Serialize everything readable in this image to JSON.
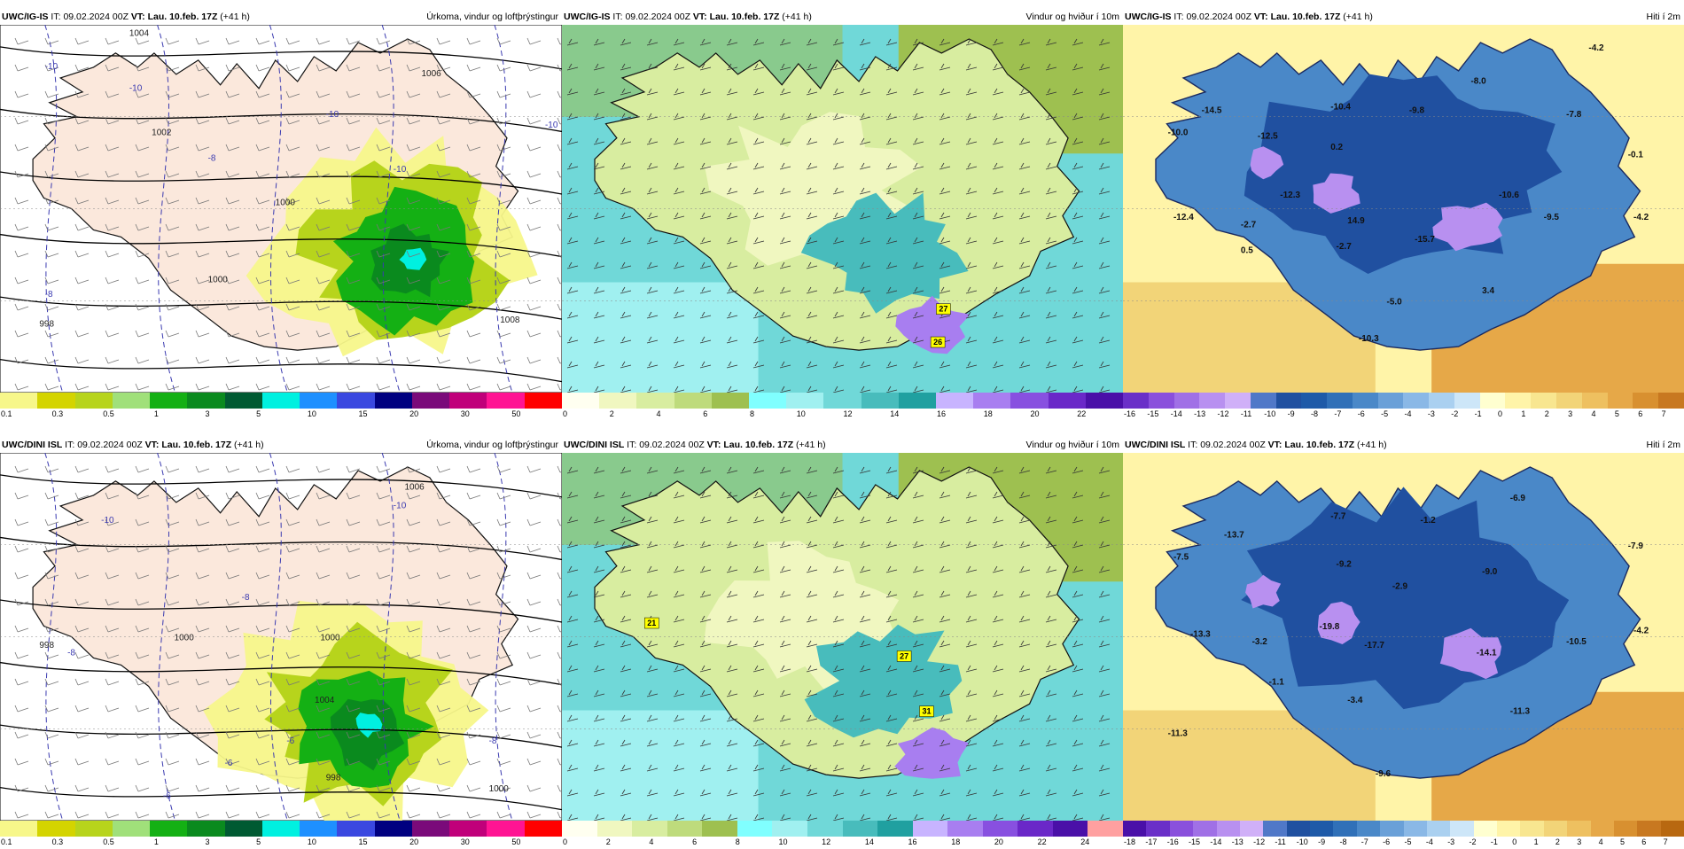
{
  "panels": [
    {
      "id": "top-precip",
      "model": "UWC/IG-IS",
      "it_label": "IT:",
      "it_value": "09.02.2024 00Z",
      "vt_label": "VT:",
      "vt_value": "Lau. 10.feb. 17Z",
      "lead": "(+41 h)",
      "title": "Úrkoma, vindur og loftþrýstingur",
      "type": "precip",
      "colorbar": {
        "colors": [
          "#f7f78a",
          "#d4d400",
          "#b7d41c",
          "#a0e07a",
          "#14b014",
          "#0a8a1e",
          "#005a32",
          "#00f0e0",
          "#1e90ff",
          "#3a48e0",
          "#000080",
          "#7a0a7a",
          "#c0007a",
          "#ff1493",
          "#ff0000"
        ],
        "labels": [
          "0.1",
          "0.3",
          "0.5",
          "1",
          "3",
          "5",
          "10",
          "15",
          "20",
          "30",
          "50"
        ]
      },
      "value_labels": [
        {
          "t": "1004"
        },
        {
          "t": "1006"
        },
        {
          "t": "1002"
        },
        {
          "t": "1000"
        },
        {
          "t": "998"
        },
        {
          "t": "1008"
        },
        {
          "t": "1000"
        },
        {
          "t": "-10"
        },
        {
          "t": "-10"
        },
        {
          "t": "-8"
        },
        {
          "t": "-10"
        },
        {
          "t": "-10"
        },
        {
          "t": "-10"
        },
        {
          "t": "-8"
        }
      ]
    },
    {
      "id": "top-wind",
      "model": "UWC/IG-IS",
      "it_label": "IT:",
      "it_value": "09.02.2024 00Z",
      "vt_label": "VT:",
      "vt_value": "Lau. 10.feb. 17Z",
      "lead": "(+41 h)",
      "title": "Vindur og hviður í 10m",
      "type": "wind",
      "colorbar": {
        "colors": [
          "#fffff0",
          "#f0f7c0",
          "#d8eda0",
          "#bedb7c",
          "#9ec050",
          "#80ffff",
          "#a0f0f0",
          "#70d8d8",
          "#48bcbc",
          "#20a0a0",
          "#c8b4ff",
          "#a87ef0",
          "#8850e0",
          "#6a28c8",
          "#4a10a8"
        ],
        "labels": [
          "0",
          "2",
          "4",
          "6",
          "8",
          "10",
          "12",
          "14",
          "16",
          "18",
          "20",
          "22"
        ]
      },
      "value_labels": [
        {
          "t": "27"
        },
        {
          "t": "26"
        }
      ]
    },
    {
      "id": "top-temp",
      "model": "UWC/IG-IS",
      "it_label": "IT:",
      "it_value": "09.02.2024 00Z",
      "vt_label": "VT:",
      "vt_value": "Lau. 10.feb. 17Z",
      "lead": "(+41 h)",
      "title": "Hiti í 2m",
      "type": "temp",
      "colorbar": {
        "colors": [
          "#6a2fc8",
          "#8a50dc",
          "#a070e6",
          "#b890f0",
          "#d0b0f8",
          "#5078c8",
          "#2050a0",
          "#1e5aa8",
          "#3070b8",
          "#4a88c8",
          "#6aa0d8",
          "#8ab8e6",
          "#aad0f0",
          "#cde6f8",
          "#ffffd0",
          "#fff4a8",
          "#f8e690",
          "#f2d478",
          "#eec060",
          "#e6a848",
          "#d89030",
          "#c87820"
        ],
        "labels": [
          "-16",
          "-15",
          "-14",
          "-13",
          "-12",
          "-11",
          "-10",
          "-9",
          "-8",
          "-7",
          "-6",
          "-5",
          "-4",
          "-3",
          "-2",
          "-1",
          "0",
          "1",
          "2",
          "3",
          "4",
          "5",
          "6",
          "7"
        ]
      },
      "value_labels": [
        {
          "t": "-14.5"
        },
        {
          "t": "-10.0"
        },
        {
          "t": "-12.5"
        },
        {
          "t": "-10.4"
        },
        {
          "t": "-9.8"
        },
        {
          "t": "-8.0"
        },
        {
          "t": "-4.2"
        },
        {
          "t": "-7.8"
        },
        {
          "t": "0.2"
        },
        {
          "t": "-12.3"
        },
        {
          "t": "-12.4"
        },
        {
          "t": "-2.7"
        },
        {
          "t": "0.5"
        },
        {
          "t": "-2.7"
        },
        {
          "t": "14.9"
        },
        {
          "t": "-10.6"
        },
        {
          "t": "-15.7"
        },
        {
          "t": "-9.5"
        },
        {
          "t": "-4.2"
        },
        {
          "t": "-0.1"
        },
        {
          "t": "-5.0"
        },
        {
          "t": "3.4"
        },
        {
          "t": "-10.3"
        }
      ]
    },
    {
      "id": "bottom-precip",
      "model": "UWC/DINI ISL",
      "it_label": "IT:",
      "it_value": "09.02.2024 00Z",
      "vt_label": "VT:",
      "vt_value": "Lau. 10.feb. 17Z",
      "lead": "(+41 h)",
      "title": "Úrkoma, vindur og loftþrýstingur",
      "type": "precip",
      "colorbar": {
        "colors": [
          "#f7f78a",
          "#d4d400",
          "#b7d41c",
          "#a0e07a",
          "#14b014",
          "#0a8a1e",
          "#005a32",
          "#00f0e0",
          "#1e90ff",
          "#3a48e0",
          "#000080",
          "#7a0a7a",
          "#c0007a",
          "#ff1493",
          "#ff0000"
        ],
        "labels": [
          "0.1",
          "0.3",
          "0.5",
          "1",
          "3",
          "5",
          "10",
          "15",
          "20",
          "30",
          "50"
        ]
      },
      "value_labels": [
        {
          "t": "1006"
        },
        {
          "t": "1000"
        },
        {
          "t": "998"
        },
        {
          "t": "1000"
        },
        {
          "t": "1000"
        },
        {
          "t": "998"
        },
        {
          "t": "1004"
        },
        {
          "t": "-10"
        },
        {
          "t": "-10"
        },
        {
          "t": "-8"
        },
        {
          "t": "-8"
        },
        {
          "t": "-6"
        },
        {
          "t": "-6"
        },
        {
          "t": "-8"
        },
        {
          "t": "-6"
        }
      ]
    },
    {
      "id": "bottom-wind",
      "model": "UWC/DINI ISL",
      "it_label": "IT:",
      "it_value": "09.02.2024 00Z",
      "vt_label": "VT:",
      "vt_value": "Lau. 10.feb. 17Z",
      "lead": "(+41 h)",
      "title": "Vindur og hviður í 10m",
      "type": "wind",
      "colorbar": {
        "colors": [
          "#fffff0",
          "#f0f7c0",
          "#d8eda0",
          "#bedb7c",
          "#9ec050",
          "#80ffff",
          "#a0f0f0",
          "#70d8d8",
          "#48bcbc",
          "#20a0a0",
          "#c8b4ff",
          "#a87ef0",
          "#8850e0",
          "#6a28c8",
          "#4a10a8",
          "#ffa0a0"
        ],
        "labels": [
          "0",
          "2",
          "4",
          "6",
          "8",
          "10",
          "12",
          "14",
          "16",
          "18",
          "20",
          "22",
          "24"
        ]
      },
      "value_labels": [
        {
          "t": "27"
        },
        {
          "t": "31"
        },
        {
          "t": "21"
        }
      ]
    },
    {
      "id": "bottom-temp",
      "model": "UWC/DINI ISL",
      "it_label": "IT:",
      "it_value": "09.02.2024 00Z",
      "vt_label": "VT:",
      "vt_value": "Lau. 10.feb. 17Z",
      "lead": "(+41 h)",
      "title": "Hiti í 2m",
      "type": "temp",
      "colorbar": {
        "colors": [
          "#4a10a8",
          "#6a2fc8",
          "#8a50dc",
          "#a070e6",
          "#b890f0",
          "#d0b0f8",
          "#5078c8",
          "#2050a0",
          "#1e5aa8",
          "#3070b8",
          "#4a88c8",
          "#6aa0d8",
          "#8ab8e6",
          "#aad0f0",
          "#cde6f8",
          "#ffffd0",
          "#fff4a8",
          "#f8e690",
          "#f2d478",
          "#eec060",
          "#e6a848",
          "#d89030",
          "#c87820",
          "#b86810"
        ],
        "labels": [
          "-18",
          "-17",
          "-16",
          "-15",
          "-14",
          "-13",
          "-12",
          "-11",
          "-10",
          "-9",
          "-8",
          "-7",
          "-6",
          "-5",
          "-4",
          "-3",
          "-2",
          "-1",
          "0",
          "1",
          "2",
          "3",
          "4",
          "5",
          "6",
          "7"
        ]
      },
      "value_labels": [
        {
          "t": "-13.7"
        },
        {
          "t": "-7.7"
        },
        {
          "t": "-7.5"
        },
        {
          "t": "-1.2"
        },
        {
          "t": "-6.9"
        },
        {
          "t": "-7.9"
        },
        {
          "t": "-9.2"
        },
        {
          "t": "-2.9"
        },
        {
          "t": "-9.0"
        },
        {
          "t": "-13.3"
        },
        {
          "t": "-3.2"
        },
        {
          "t": "-19.8"
        },
        {
          "t": "-17.7"
        },
        {
          "t": "-14.1"
        },
        {
          "t": "-10.5"
        },
        {
          "t": "-4.2"
        },
        {
          "t": "-1.1"
        },
        {
          "t": "-3.4"
        },
        {
          "t": "-11.3"
        },
        {
          "t": "-11.3"
        },
        {
          "t": "-9.6"
        }
      ]
    }
  ]
}
